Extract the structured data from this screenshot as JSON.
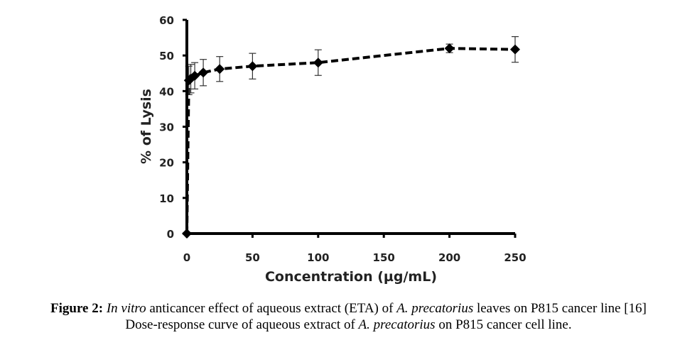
{
  "chart_data": {
    "type": "line",
    "title": "",
    "xlabel": "Concentration  (µg/mL)",
    "ylabel": "% of Lysis",
    "xlim": [
      0,
      250
    ],
    "ylim": [
      0,
      60
    ],
    "x_ticks": [
      0,
      50,
      100,
      150,
      200,
      250
    ],
    "y_ticks": [
      0,
      10,
      20,
      30,
      40,
      50,
      60
    ],
    "grid": false,
    "legend": "none",
    "series": [
      {
        "name": "Aqueous extract (ETA)",
        "line_style": "dashed",
        "marker": "diamond",
        "color": "#000000",
        "x": [
          0,
          1.5,
          3,
          6,
          12.5,
          25,
          50,
          100,
          200,
          250
        ],
        "y": [
          0,
          43,
          43.5,
          44.3,
          45.2,
          46.2,
          47,
          48,
          52,
          51.7
        ],
        "error": [
          null,
          4,
          4,
          3.7,
          3.7,
          3.5,
          3.6,
          3.6,
          1.2,
          3.6
        ]
      }
    ]
  },
  "caption": {
    "line1": {
      "label": "Figure 2:",
      "italic_1": "In vitro",
      "text_1": " anticancer effect of aqueous extract (ETA) of ",
      "italic_2": "A. precatorius",
      "text_2": " leaves on P815 cancer line [16]"
    },
    "line2": {
      "text_1": "Dose-response curve of aqueous extract of ",
      "italic_1": "A. precatorius",
      "text_2": " on P815 cancer cell line."
    }
  }
}
